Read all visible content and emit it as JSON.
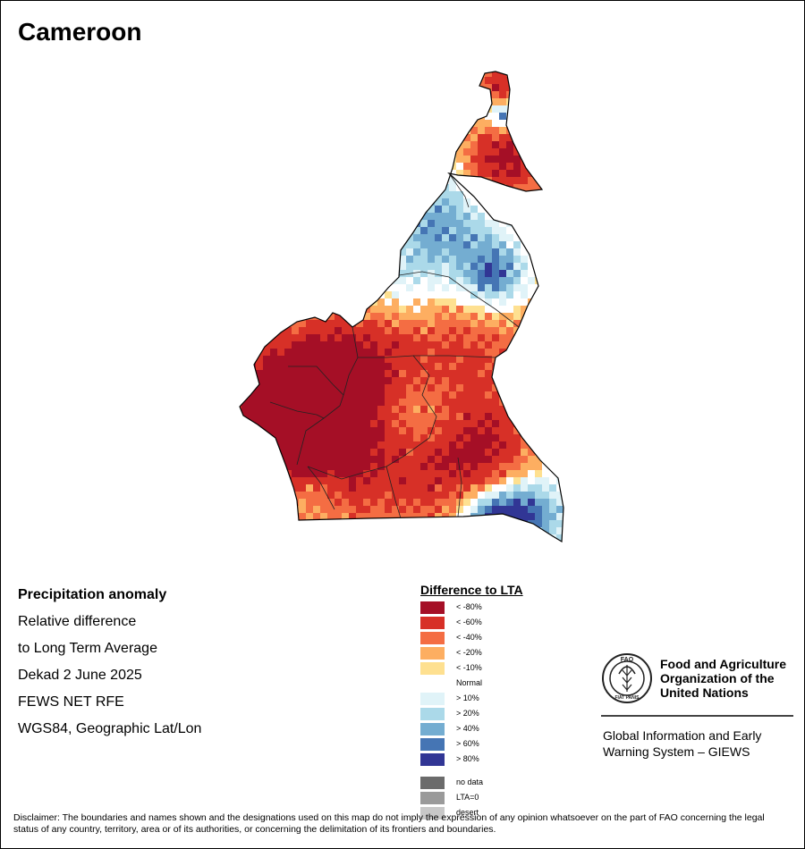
{
  "title": "Cameroon",
  "info": {
    "heading": "Precipitation anomaly",
    "line1": "Relative difference",
    "line2": "to Long Term Average",
    "period": "Dekad 2 June 2025",
    "source": "FEWS NET RFE",
    "projection": "WGS84, Geographic Lat/Lon"
  },
  "legend": {
    "title": "Difference to LTA",
    "dry": [
      {
        "label": "< -80%",
        "color": "#a50f26"
      },
      {
        "label": "< -60%",
        "color": "#d73027"
      },
      {
        "label": "< -40%",
        "color": "#f46d43"
      },
      {
        "label": "< -20%",
        "color": "#fdae61"
      },
      {
        "label": "< -10%",
        "color": "#fee090"
      }
    ],
    "normal_label": "Normal",
    "wet": [
      {
        "label": "> 10%",
        "color": "#e0f3f8"
      },
      {
        "label": "> 20%",
        "color": "#abd9e9"
      },
      {
        "label": "> 40%",
        "color": "#74add1"
      },
      {
        "label": "> 60%",
        "color": "#4575b4"
      },
      {
        "label": "> 80%",
        "color": "#313695"
      }
    ],
    "special": [
      {
        "label": "no data",
        "color": "#6b6b6b"
      },
      {
        "label": "LTA=0",
        "color": "#9a9a9a"
      },
      {
        "label": "desert",
        "color": "#c8c8c8"
      }
    ]
  },
  "organization": {
    "logo_text": "FAO",
    "logo_motto": "FIAT PANIS",
    "name_line1": "Food and Agriculture",
    "name_line2": "Organization of the",
    "name_line3": "United Nations",
    "system_line1": "Global Information and Early",
    "system_line2": "Warning System – GIEWS"
  },
  "disclaimer": "Disclaimer: The boundaries and names shown and the designations used on this map do not imply the expression of any opinion whatsoever on the part of FAO concerning the legal status of any country, territory, area or of its authorities, or concerning the delimitation of its frontiers and boundaries."
}
